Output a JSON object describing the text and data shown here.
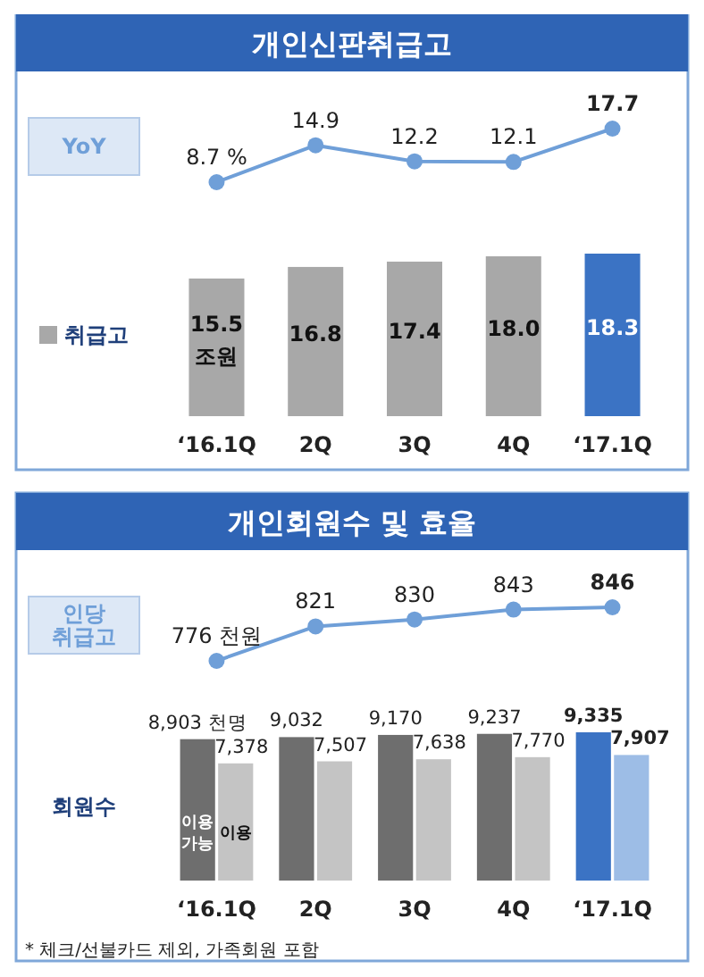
{
  "chart_data": [
    {
      "type": "line",
      "title": "개인신판취급고",
      "categories": [
        null,
        null,
        null,
        null,
        null
      ],
      "marker": "circle",
      "series": [
        {
          "name": "YoY",
          "color": "#6f9fd8",
          "values": [
            8.7,
            14.9,
            12.2,
            12.1,
            17.7
          ],
          "value_labels": [
            "8.7 %",
            "14.9",
            "12.2",
            "12.1",
            "17.7"
          ]
        }
      ]
    },
    {
      "type": "bar",
      "categories": [
        "‘16.1Q",
        "2Q",
        "3Q",
        "4Q",
        "‘17.1Q"
      ],
      "legend": "left",
      "series": [
        {
          "name": "취급고",
          "colors": [
            "#a8a8a8",
            "#a8a8a8",
            "#a8a8a8",
            "#a8a8a8",
            "#3b73c4"
          ],
          "values": [
            15.5,
            16.8,
            17.4,
            18.0,
            18.3
          ],
          "value_labels": [
            "15.5 조원",
            "16.8",
            "17.4",
            "18.0",
            "18.3"
          ]
        }
      ]
    },
    {
      "type": "line",
      "title": "개인회원수 및 효율",
      "categories": [
        null,
        null,
        null,
        null,
        null
      ],
      "marker": "circle",
      "series": [
        {
          "name": "인당 취급고",
          "color": "#6f9fd8",
          "values": [
            776,
            821,
            830,
            843,
            846
          ],
          "value_labels": [
            "776 천원",
            "821",
            "830",
            "843",
            "846"
          ]
        }
      ]
    },
    {
      "type": "bar",
      "ylabel": "회원수",
      "categories": [
        "‘16.1Q",
        "2Q",
        "3Q",
        "4Q",
        "‘17.1Q"
      ],
      "annotations": [
        "* 체크/선불카드 제외, 가족회원 포함"
      ],
      "series": [
        {
          "name": "이용 가능",
          "colors": [
            "#6e6e6e",
            "#6e6e6e",
            "#6e6e6e",
            "#6e6e6e",
            "#3b73c4"
          ],
          "values": [
            8903,
            9032,
            9170,
            9237,
            9335
          ],
          "value_labels": [
            "8,903 천명",
            "9,032",
            "9,170",
            "9,237",
            "9,335"
          ]
        },
        {
          "name": "이용",
          "colors": [
            "#c4c4c4",
            "#c4c4c4",
            "#c4c4c4",
            "#c4c4c4",
            "#9dbde6"
          ],
          "values": [
            7378,
            7507,
            7638,
            7770,
            7907
          ],
          "value_labels": [
            "7,378",
            "7,507",
            "7,638",
            "7,770",
            "7,907"
          ]
        }
      ]
    }
  ]
}
